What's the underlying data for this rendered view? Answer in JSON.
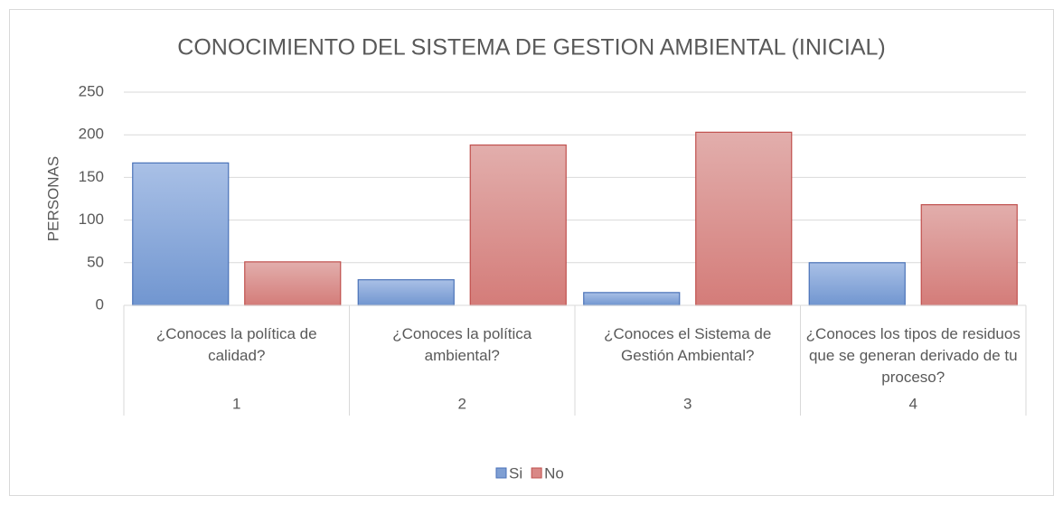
{
  "chart_data": {
    "type": "bar",
    "title": "CONOCIMIENTO DEL SISTEMA DE GESTION AMBIENTAL (INICIAL)",
    "y_label": "PERSONAS",
    "categories": [
      "¿Conoces la política de calidad?",
      "¿Conoces la política ambiental?",
      "¿Conoces el Sistema de Gestión Ambiental?",
      "¿Conoces los tipos de residuos que se generan derivado de tu proceso?"
    ],
    "category_groups": [
      "1",
      "2",
      "3",
      "4"
    ],
    "series": [
      {
        "name": "Si",
        "color": "#7f9fd3",
        "values": [
          167,
          30,
          15,
          50
        ]
      },
      {
        "name": "No",
        "color": "#d98886",
        "values": [
          51,
          188,
          203,
          118
        ]
      }
    ],
    "ylim": [
      0,
      250
    ],
    "yticks": [
      0,
      50,
      100,
      150,
      200,
      250
    ],
    "grid": true,
    "legend": "bottom"
  }
}
